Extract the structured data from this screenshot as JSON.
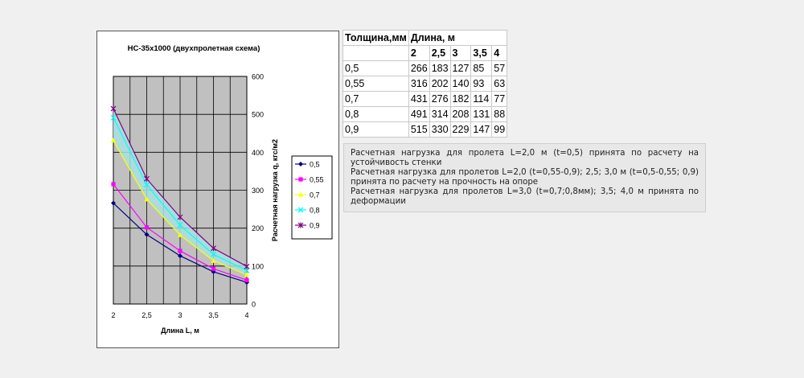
{
  "chart_data": {
    "type": "line",
    "title": "НС-35х1000 (двухпролетная схема)",
    "xlabel": "Длина L, м",
    "ylabel": "Расчетная нагрузка q, кгс/м2",
    "x": [
      2,
      2.5,
      3,
      3.5,
      4
    ],
    "x_tick_labels": [
      "2",
      "2,5",
      "3",
      "3,5",
      "4"
    ],
    "y_ticks": [
      0,
      100,
      200,
      300,
      400,
      500,
      600
    ],
    "ylim": [
      0,
      600
    ],
    "grid": true,
    "legend_position": "right",
    "plot_background": "#c0c0c0",
    "band_fill": "#a8e0e0",
    "series": [
      {
        "name": "0,5",
        "values": [
          266,
          183,
          127,
          85,
          57
        ],
        "color": "#000080",
        "marker": "diamond"
      },
      {
        "name": "0,55",
        "values": [
          316,
          202,
          140,
          93,
          63
        ],
        "color": "#ff00ff",
        "marker": "square"
      },
      {
        "name": "0,7",
        "values": [
          431,
          276,
          182,
          114,
          77
        ],
        "color": "#ffff00",
        "marker": "triangle"
      },
      {
        "name": "0,8",
        "values": [
          491,
          314,
          208,
          131,
          88
        ],
        "color": "#00ffff",
        "marker": "x"
      },
      {
        "name": "0,9",
        "values": [
          515,
          330,
          229,
          147,
          99
        ],
        "color": "#800080",
        "marker": "star"
      }
    ]
  },
  "table": {
    "header": [
      "Толщина,мм",
      "Длина, м"
    ],
    "lengths": [
      "2",
      "2,5",
      "3",
      "3,5",
      "4"
    ],
    "rows": [
      {
        "t": "0,5",
        "v": [
          "266",
          "183",
          "127",
          "85",
          "57"
        ]
      },
      {
        "t": "0,55",
        "v": [
          "316",
          "202",
          "140",
          "93",
          "63"
        ]
      },
      {
        "t": "0,7",
        "v": [
          "431",
          "276",
          "182",
          "114",
          "77"
        ]
      },
      {
        "t": "0,8",
        "v": [
          "491",
          "314",
          "208",
          "131",
          "88"
        ]
      },
      {
        "t": "0,9",
        "v": [
          "515",
          "330",
          "229",
          "147",
          "99"
        ]
      }
    ]
  },
  "notes": [
    "Расчетная нагрузка для пролета L=2,0 м (t=0,5) принята по расчету на устойчивость стенки",
    "Расчетная нагрузка для пролетов L=2,0 (t=0,55-0,9); 2,5; 3,0 м (t=0,5-0,55; 0,9) принята по расчету на прочность на опоре",
    "Расчетная нагрузка для пролетов L=3,0 (t=0,7;0,8мм); 3,5; 4,0 м принята по деформации"
  ]
}
